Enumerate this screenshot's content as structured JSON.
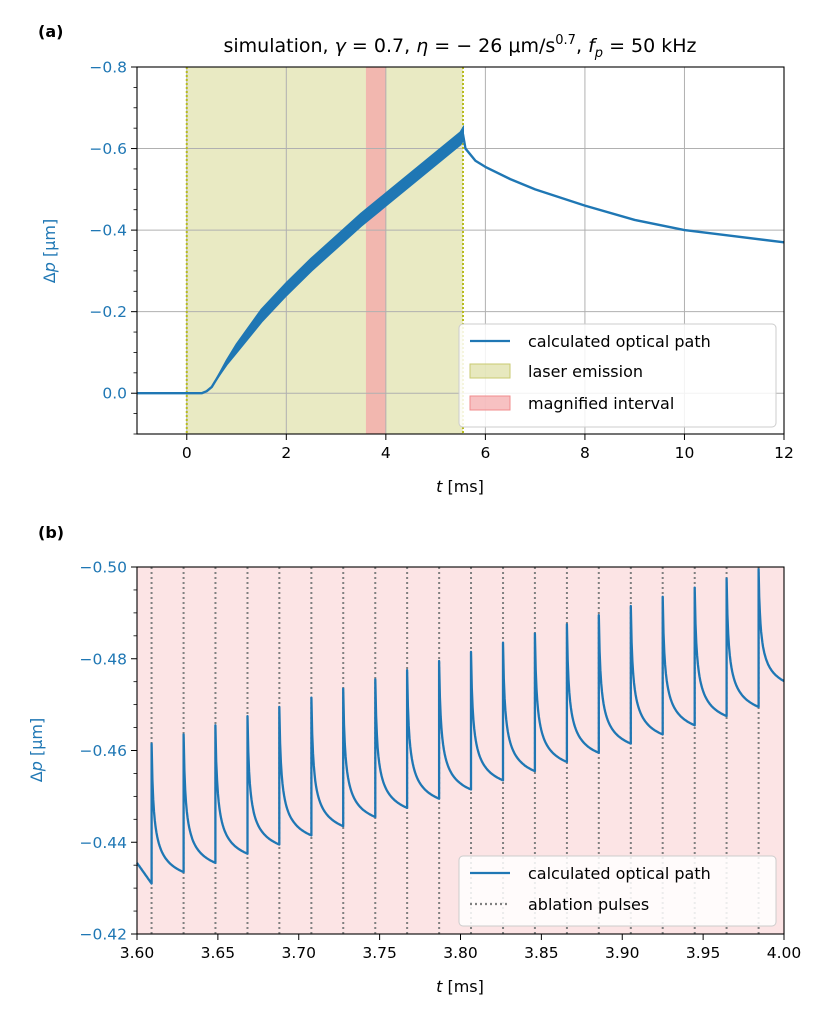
{
  "colors": {
    "series": "#1f77b4",
    "laser": "#d4d688",
    "magnified": "#f4a6a8",
    "grid": "#b0b0b0",
    "pulse": "#808080"
  },
  "chart_data": [
    {
      "panel": "(a)",
      "type": "line",
      "title": "simulation, γ = 0.7, η = − 26 μm/s^0.7, f_p = 50 kHz",
      "title_parts": {
        "lead": "simulation, ",
        "gamma_sym": "γ",
        "gamma_val": " = 0.7, ",
        "eta_sym": "η",
        "eta_val": " = − 26 μm/s",
        "eta_exp": "0.7",
        "f_sym": "f",
        "f_sub": "p",
        "f_val": " = 50 kHz"
      },
      "xlabel": "t [ms]",
      "xlabel_parts": {
        "sym": "t",
        "unit": " [ms]"
      },
      "ylabel": "Δp [μm]",
      "ylabel_parts": {
        "delta": "Δ",
        "sym": "p",
        "unit": " [μm]"
      },
      "xlim": [
        -1,
        12
      ],
      "ylim": [
        0.1,
        -0.8
      ],
      "xticks": [
        0,
        2,
        4,
        6,
        8,
        10,
        12
      ],
      "xtick_labels": [
        "0",
        "2",
        "4",
        "6",
        "8",
        "10",
        "12"
      ],
      "yticks": [
        -0.8,
        -0.6,
        -0.4,
        -0.2,
        0.0
      ],
      "ytick_labels": [
        "−0.8",
        "−0.6",
        "−0.4",
        "−0.2",
        "0.0"
      ],
      "grid": true,
      "legend_position": "lower-right",
      "laser_emission": [
        0,
        5.55
      ],
      "magnified_interval": [
        3.6,
        4.0
      ],
      "series": [
        {
          "name": "calculated optical path",
          "x": [
            -1,
            0,
            0.3,
            0.4,
            0.5,
            0.6,
            0.8,
            1.0,
            1.5,
            2.0,
            2.5,
            3.0,
            3.5,
            4.0,
            4.5,
            5.0,
            5.5,
            5.55,
            5.6,
            5.8,
            6.0,
            6.5,
            7.0,
            8.0,
            9.0,
            10.0,
            11.0,
            12.0
          ],
          "y": [
            0,
            0,
            0,
            -0.005,
            -0.015,
            -0.035,
            -0.075,
            -0.11,
            -0.19,
            -0.255,
            -0.315,
            -0.37,
            -0.425,
            -0.475,
            -0.525,
            -0.575,
            -0.625,
            -0.635,
            -0.6,
            -0.57,
            -0.555,
            -0.525,
            -0.5,
            -0.46,
            -0.425,
            -0.4,
            -0.385,
            -0.37
          ],
          "band_halfwidth": 0.015,
          "band_range": [
            0.6,
            5.55
          ]
        }
      ],
      "legend": [
        "calculated optical path",
        "laser emission",
        "magnified interval"
      ]
    },
    {
      "panel": "(b)",
      "type": "line",
      "xlabel": "t [ms]",
      "xlabel_parts": {
        "sym": "t",
        "unit": " [ms]"
      },
      "ylabel": "Δp [μm]",
      "ylabel_parts": {
        "delta": "Δ",
        "sym": "p",
        "unit": " [μm]"
      },
      "xlim": [
        3.6,
        4.0
      ],
      "ylim": [
        -0.42,
        -0.5
      ],
      "xticks": [
        3.6,
        3.65,
        3.7,
        3.75,
        3.8,
        3.85,
        3.9,
        3.95,
        4.0
      ],
      "xtick_labels": [
        "3.60",
        "3.65",
        "3.70",
        "3.75",
        "3.80",
        "3.85",
        "3.90",
        "3.95",
        "4.00"
      ],
      "yticks": [
        -0.5,
        -0.48,
        -0.46,
        -0.44,
        -0.42
      ],
      "ytick_labels": [
        "−0.50",
        "−0.48",
        "−0.46",
        "−0.44",
        "−0.42"
      ],
      "grid": false,
      "legend_position": "lower-right",
      "pulse_period": 0.01975,
      "pulse_times": [
        3.609,
        3.6288,
        3.6485,
        3.6683,
        3.688,
        3.7078,
        3.7275,
        3.7473,
        3.767,
        3.7868,
        3.8065,
        3.8263,
        3.846,
        3.8658,
        3.8855,
        3.9053,
        3.925,
        3.9448,
        3.9645,
        3.9843
      ],
      "peak_values": [
        -0.4615,
        -0.4635,
        -0.4655,
        -0.4675,
        -0.4695,
        -0.4715,
        -0.4735,
        -0.4755,
        -0.4775,
        -0.4795,
        -0.4815,
        -0.4835,
        -0.4855,
        -0.4875,
        -0.4895,
        -0.4915,
        -0.4935,
        -0.4955,
        -0.4975,
        -0.4995
      ],
      "trough_values": [
        -0.431,
        -0.4335,
        -0.4355,
        -0.4375,
        -0.4395,
        -0.4415,
        -0.4435,
        -0.4455,
        -0.4475,
        -0.4495,
        -0.4515,
        -0.4535,
        -0.4555,
        -0.4575,
        -0.4595,
        -0.4615,
        -0.4635,
        -0.4655,
        -0.4675,
        -0.4695
      ],
      "start_value": -0.4355,
      "end_value": -0.4745,
      "series_name": "calculated optical path",
      "legend": [
        "calculated optical path",
        "ablation pulses"
      ]
    }
  ]
}
